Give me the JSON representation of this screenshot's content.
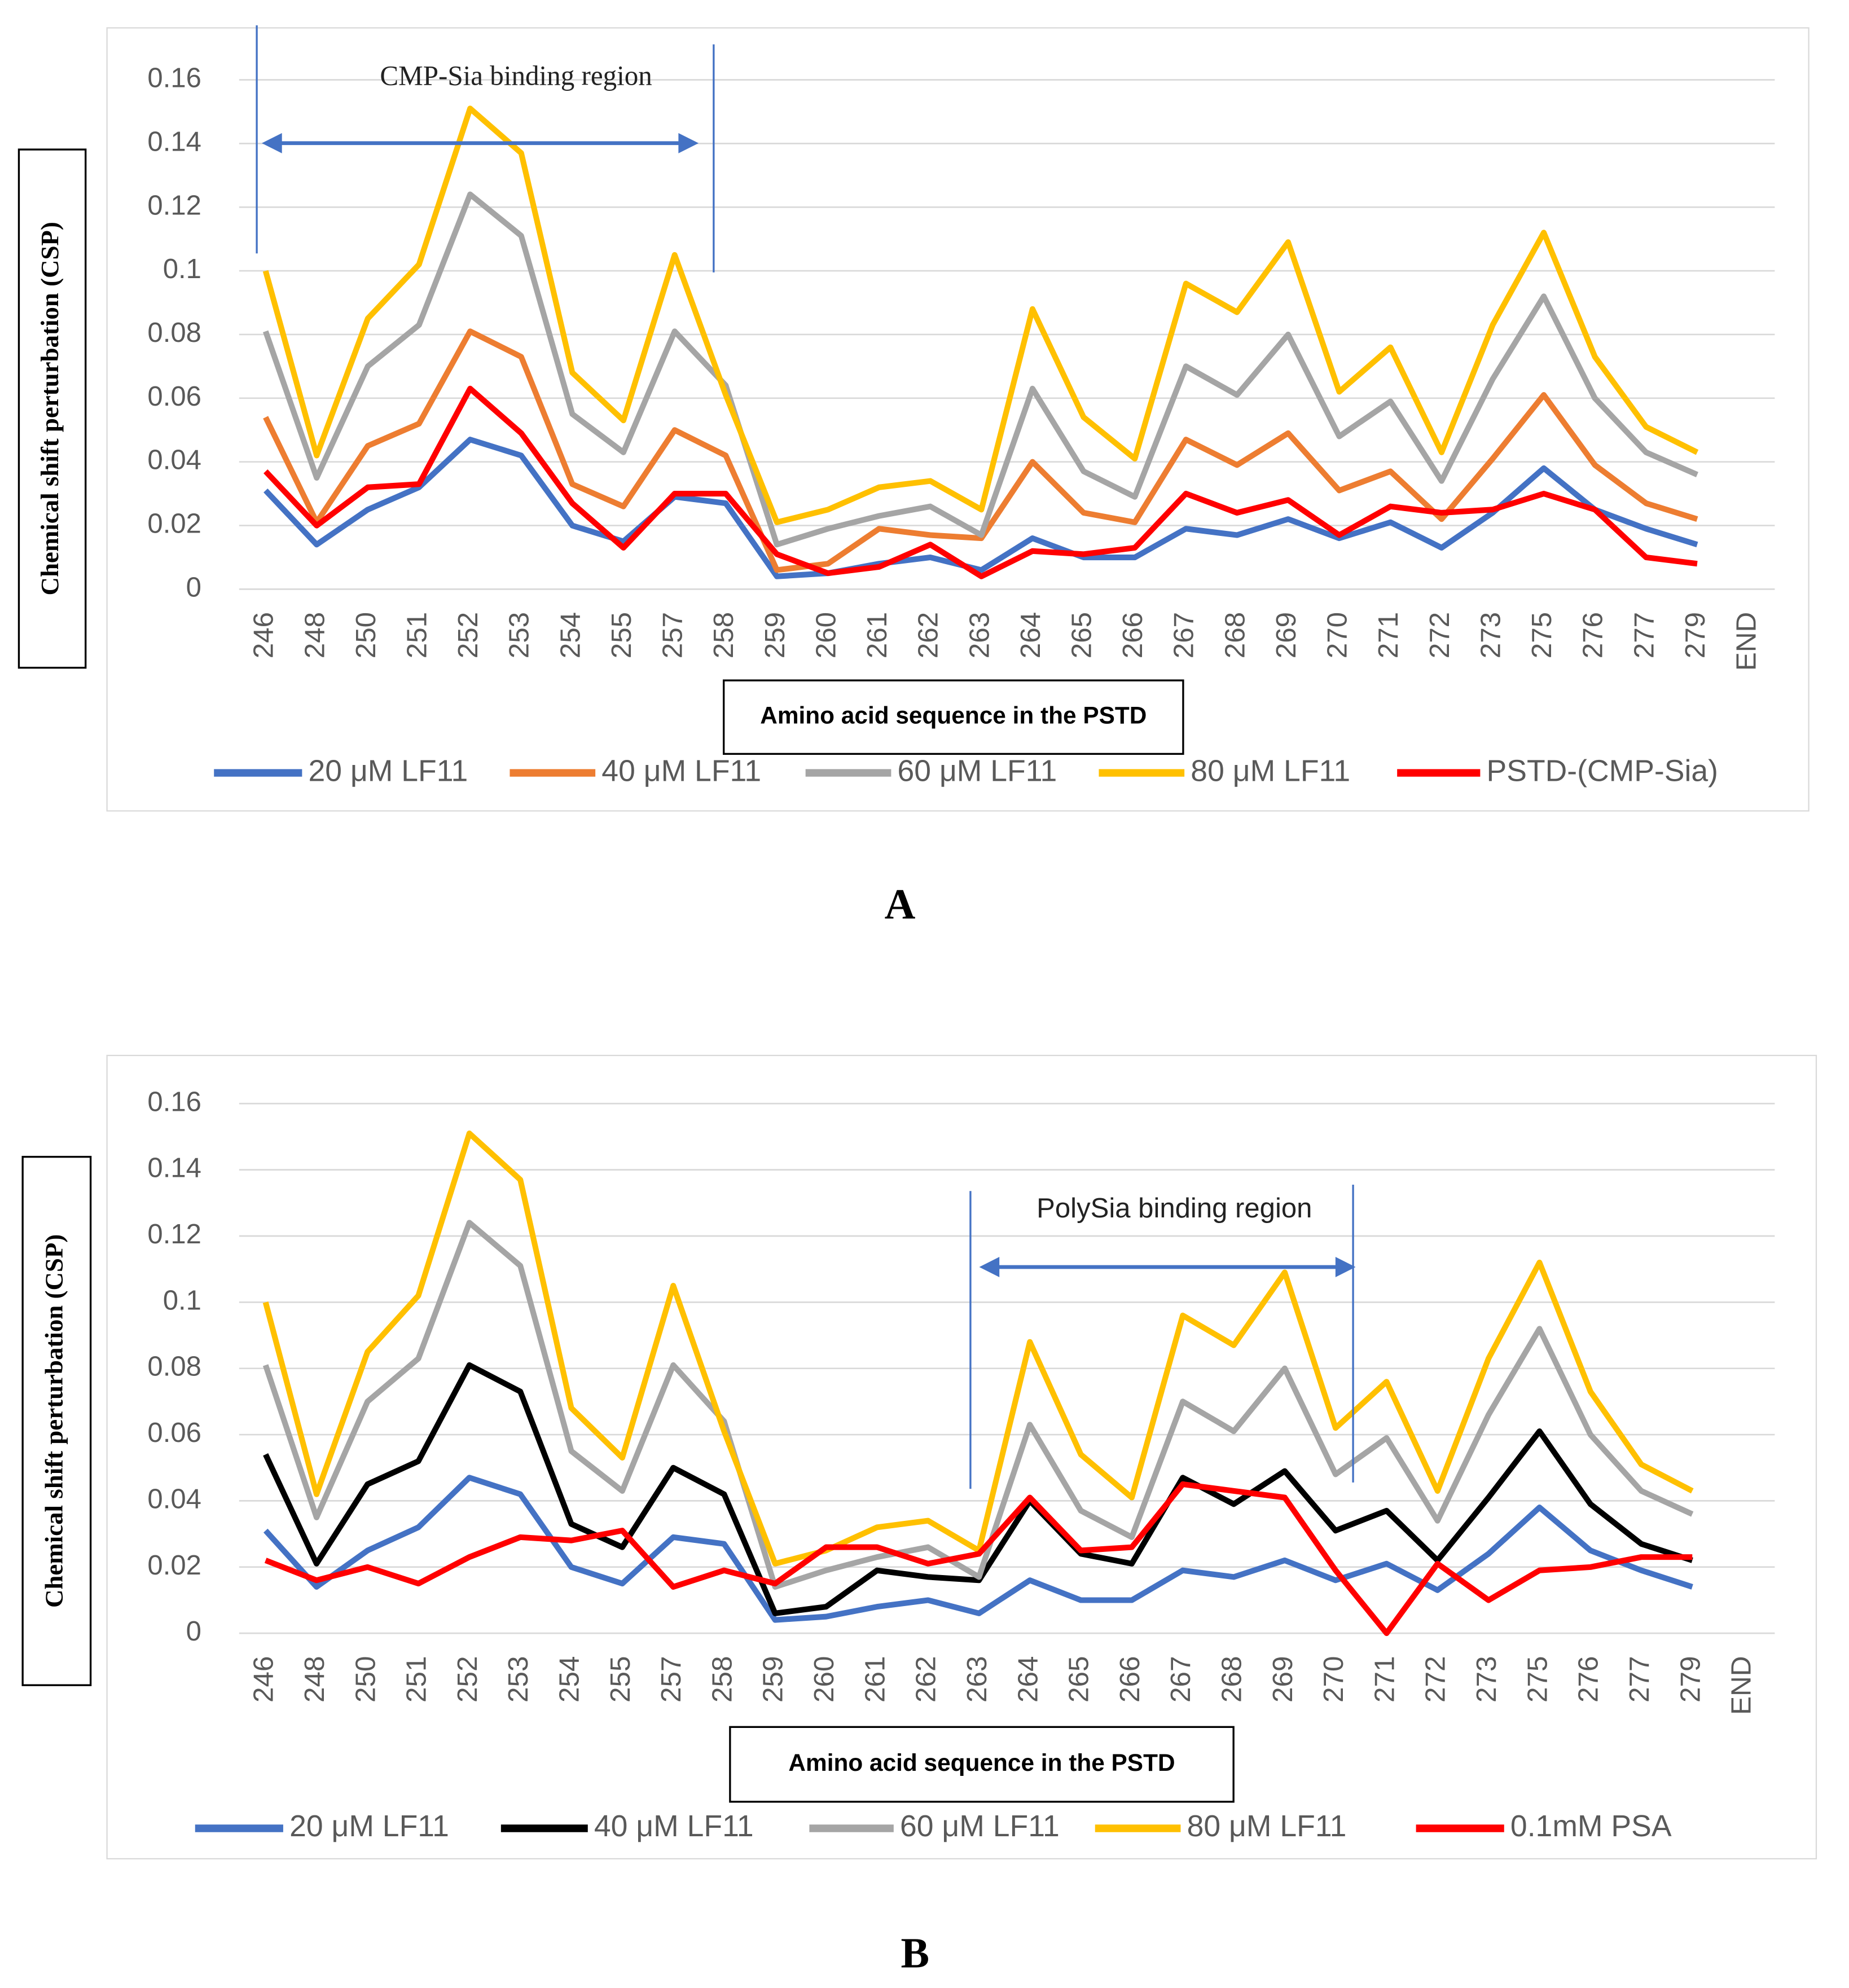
{
  "chart_data": [
    {
      "type": "line",
      "panel": "A",
      "annotation": "CMP-Sia binding region",
      "ylabel": "Chemical shift perturbation (CSP)",
      "xlabel": "Amino acid sequence in the PSTD",
      "categories": [
        "246",
        "248",
        "250",
        "251",
        "252",
        "253",
        "254",
        "255",
        "257",
        "258",
        "259",
        "260",
        "261",
        "262",
        "263",
        "264",
        "265",
        "266",
        "267",
        "268",
        "269",
        "270",
        "271",
        "272",
        "273",
        "275",
        "276",
        "277",
        "279",
        "END"
      ],
      "ylim": [
        0,
        0.16
      ],
      "yticks": [
        0,
        0.02,
        0.04,
        0.06,
        0.08,
        0.1,
        0.12,
        0.14,
        0.16
      ],
      "grid": true,
      "legend": "bottom",
      "series": [
        {
          "name": "20 μM LF11",
          "color": "#4472c4",
          "values": [
            0.031,
            0.014,
            0.025,
            0.032,
            0.047,
            0.042,
            0.02,
            0.015,
            0.029,
            0.027,
            0.004,
            0.005,
            0.008,
            0.01,
            0.006,
            0.016,
            0.01,
            0.01,
            0.019,
            0.017,
            0.022,
            0.016,
            0.021,
            0.013,
            0.024,
            0.038,
            0.025,
            0.019,
            0.014,
            null
          ]
        },
        {
          "name": "40 μM LF11",
          "color": "#ed7d31",
          "values": [
            0.054,
            0.021,
            0.045,
            0.052,
            0.081,
            0.073,
            0.033,
            0.026,
            0.05,
            0.042,
            0.006,
            0.008,
            0.019,
            0.017,
            0.016,
            0.04,
            0.024,
            0.021,
            0.047,
            0.039,
            0.049,
            0.031,
            0.037,
            0.022,
            0.041,
            0.061,
            0.039,
            0.027,
            0.022,
            null
          ]
        },
        {
          "name": "60 μM LF11",
          "color": "#a5a5a5",
          "values": [
            0.081,
            0.035,
            0.07,
            0.083,
            0.124,
            0.111,
            0.055,
            0.043,
            0.081,
            0.064,
            0.014,
            0.019,
            0.023,
            0.026,
            0.017,
            0.063,
            0.037,
            0.029,
            0.07,
            0.061,
            0.08,
            0.048,
            0.059,
            0.034,
            0.066,
            0.092,
            0.06,
            0.043,
            0.036,
            null
          ]
        },
        {
          "name": "80 μM LF11",
          "color": "#ffc000",
          "values": [
            0.1,
            0.042,
            0.085,
            0.102,
            0.151,
            0.137,
            0.068,
            0.053,
            0.105,
            0.061,
            0.021,
            0.025,
            0.032,
            0.034,
            0.025,
            0.088,
            0.054,
            0.041,
            0.096,
            0.087,
            0.109,
            0.062,
            0.076,
            0.043,
            0.083,
            0.112,
            0.073,
            0.051,
            0.043,
            null
          ]
        },
        {
          "name": "PSTD-(CMP-Sia)",
          "color": "#ff0000",
          "values": [
            0.037,
            0.02,
            0.032,
            0.033,
            0.063,
            0.049,
            0.027,
            0.013,
            0.03,
            0.03,
            0.011,
            0.005,
            0.007,
            0.014,
            0.004,
            0.012,
            0.011,
            0.013,
            0.03,
            0.024,
            0.028,
            0.017,
            0.026,
            0.024,
            0.025,
            0.03,
            0.025,
            0.01,
            0.008,
            null
          ]
        }
      ]
    },
    {
      "type": "line",
      "panel": "B",
      "annotation": "PolySia binding region",
      "ylabel": "Chemical shift perturbation (CSP)",
      "xlabel": "Amino acid sequence in the PSTD",
      "categories": [
        "246",
        "248",
        "250",
        "251",
        "252",
        "253",
        "254",
        "255",
        "257",
        "258",
        "259",
        "260",
        "261",
        "262",
        "263",
        "264",
        "265",
        "266",
        "267",
        "268",
        "269",
        "270",
        "271",
        "272",
        "273",
        "275",
        "276",
        "277",
        "279",
        "END"
      ],
      "ylim": [
        0,
        0.16
      ],
      "yticks": [
        0,
        0.02,
        0.04,
        0.06,
        0.08,
        0.1,
        0.12,
        0.14,
        0.16
      ],
      "grid": true,
      "legend": "bottom",
      "series": [
        {
          "name": "20 μM LF11",
          "color": "#4472c4",
          "values": [
            0.031,
            0.014,
            0.025,
            0.032,
            0.047,
            0.042,
            0.02,
            0.015,
            0.029,
            0.027,
            0.004,
            0.005,
            0.008,
            0.01,
            0.006,
            0.016,
            0.01,
            0.01,
            0.019,
            0.017,
            0.022,
            0.016,
            0.021,
            0.013,
            0.024,
            0.038,
            0.025,
            0.019,
            0.014,
            null
          ]
        },
        {
          "name": "40 μM LF11",
          "color": "#000000",
          "values": [
            0.054,
            0.021,
            0.045,
            0.052,
            0.081,
            0.073,
            0.033,
            0.026,
            0.05,
            0.042,
            0.006,
            0.008,
            0.019,
            0.017,
            0.016,
            0.04,
            0.024,
            0.021,
            0.047,
            0.039,
            0.049,
            0.031,
            0.037,
            0.022,
            0.041,
            0.061,
            0.039,
            0.027,
            0.022,
            null
          ]
        },
        {
          "name": "60 μM LF11",
          "color": "#a5a5a5",
          "values": [
            0.081,
            0.035,
            0.07,
            0.083,
            0.124,
            0.111,
            0.055,
            0.043,
            0.081,
            0.064,
            0.014,
            0.019,
            0.023,
            0.026,
            0.017,
            0.063,
            0.037,
            0.029,
            0.07,
            0.061,
            0.08,
            0.048,
            0.059,
            0.034,
            0.066,
            0.092,
            0.06,
            0.043,
            0.036,
            null
          ]
        },
        {
          "name": "80 μM LF11",
          "color": "#ffc000",
          "values": [
            0.1,
            0.042,
            0.085,
            0.102,
            0.151,
            0.137,
            0.068,
            0.053,
            0.105,
            0.061,
            0.021,
            0.025,
            0.032,
            0.034,
            0.025,
            0.088,
            0.054,
            0.041,
            0.096,
            0.087,
            0.109,
            0.062,
            0.076,
            0.043,
            0.083,
            0.112,
            0.073,
            0.051,
            0.043,
            null
          ]
        },
        {
          "name": "0.1mM PSA",
          "color": "#ff0000",
          "values": [
            0.022,
            0.016,
            0.02,
            0.015,
            0.023,
            0.029,
            0.028,
            0.031,
            0.014,
            0.019,
            0.015,
            0.026,
            0.026,
            0.021,
            0.024,
            0.041,
            0.025,
            0.026,
            0.045,
            0.043,
            0.041,
            0.019,
            0.0,
            0.021,
            0.01,
            0.019,
            0.02,
            0.023,
            0.023,
            null
          ]
        }
      ]
    }
  ]
}
